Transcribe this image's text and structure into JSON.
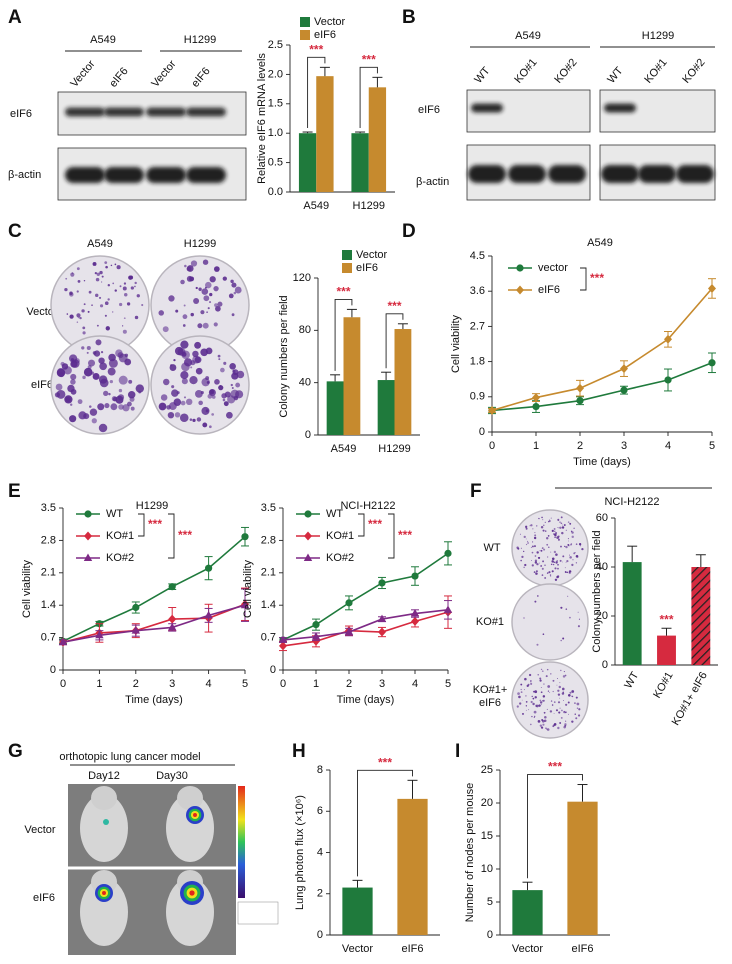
{
  "panel_labels": [
    "A",
    "B",
    "C",
    "D",
    "E",
    "F",
    "G",
    "H",
    "I"
  ],
  "panel_a": {
    "cell_lines": [
      "A549",
      "H1299"
    ],
    "lanes": [
      "Vector",
      "eIF6",
      "Vector",
      "eIF6"
    ],
    "rows": [
      "eIF6",
      "β-actin"
    ]
  },
  "panel_b": {
    "cell_lines": [
      "A549",
      "H1299"
    ],
    "lanes": [
      "WT",
      "KO#1",
      "KO#2",
      "WT",
      "KO#1",
      "KO#2"
    ],
    "rows": [
      "eIF6",
      "β-actin"
    ]
  },
  "panel_c": {
    "cell_lines": [
      "A549",
      "H1299"
    ],
    "rows": [
      "Vector",
      "eIF6"
    ]
  },
  "panel_f": {
    "title": "NCI-H2122",
    "rows": [
      "WT",
      "KO#1",
      "KO#1+ eIF6"
    ]
  },
  "panel_g": {
    "title": "orthotopic lung cancer model",
    "days": [
      "Day12",
      "Day30"
    ],
    "rows": [
      "Vector",
      "eIF6"
    ]
  },
  "chart_data": [
    {
      "type": "bar",
      "ylabel": "Relative eIF6 mRNA levels",
      "categories": [
        "A549",
        "H1299"
      ],
      "series": [
        {
          "name": "Vector",
          "color": "#1f7a3c",
          "values": [
            1.0,
            1.0
          ],
          "errors": [
            0.02,
            0.02
          ]
        },
        {
          "name": "eIF6",
          "color": "#c68a2e",
          "values": [
            1.97,
            1.78
          ],
          "errors": [
            0.15,
            0.17
          ]
        }
      ],
      "ylim": [
        0,
        2.5
      ],
      "yticks": [
        {
          "value": 0,
          "label": "0.0"
        },
        0.5,
        {
          "value": 1,
          "label": "1.0"
        },
        1.5,
        {
          "value": 2,
          "label": "2.0"
        },
        2.5
      ],
      "annotations": [
        "***",
        "***"
      ]
    },
    {
      "type": "bar",
      "ylabel": "Colony numbers per field",
      "categories": [
        "A549",
        "H1299"
      ],
      "series": [
        {
          "name": "Vector",
          "color": "#1f7a3c",
          "values": [
            41,
            42
          ],
          "errors": [
            5,
            6
          ]
        },
        {
          "name": "eIF6",
          "color": "#c68a2e",
          "values": [
            90,
            81
          ],
          "errors": [
            6,
            4
          ]
        }
      ],
      "ylim": [
        0,
        120
      ],
      "yticks": [
        0,
        40,
        80,
        120
      ],
      "annotations": [
        "***",
        "***"
      ]
    },
    {
      "type": "line",
      "title": "A549",
      "xlabel": "Time (days)",
      "ylabel": "Cell viability",
      "x": [
        0,
        1,
        2,
        3,
        4,
        5
      ],
      "series": [
        {
          "name": "vector",
          "color": "#1f7a3c",
          "values": [
            0.55,
            0.65,
            0.8,
            1.07,
            1.33,
            1.77
          ],
          "errors": [
            0.08,
            0.15,
            0.1,
            0.1,
            0.28,
            0.25
          ]
        },
        {
          "name": "eIF6",
          "color": "#c68a2e",
          "values": [
            0.55,
            0.88,
            1.12,
            1.62,
            2.37,
            3.67
          ],
          "errors": [
            0.05,
            0.1,
            0.2,
            0.2,
            0.2,
            0.25
          ]
        }
      ],
      "xlim": [
        0,
        5
      ],
      "xticks": [
        0,
        1,
        2,
        3,
        4,
        5
      ],
      "ylim": [
        0,
        4.5
      ],
      "yticks": [
        0,
        0.9,
        1.8,
        2.7,
        3.6,
        4.5
      ],
      "annotations": [
        "***"
      ]
    },
    {
      "type": "line",
      "title": "H1299",
      "xlabel": "Time (days)",
      "ylabel": "Cell viability",
      "x": [
        0,
        1,
        2,
        3,
        4,
        5
      ],
      "series": [
        {
          "name": "WT",
          "color": "#1f7a3c",
          "values": [
            0.62,
            1.0,
            1.35,
            1.8,
            2.2,
            2.88
          ],
          "errors": [
            0.05,
            0.05,
            0.12,
            0.06,
            0.25,
            0.2
          ]
        },
        {
          "name": "KO#1",
          "color": "#d62a3f",
          "values": [
            0.6,
            0.8,
            0.85,
            1.1,
            1.12,
            1.42
          ],
          "errors": [
            0.05,
            0.2,
            0.15,
            0.25,
            0.3,
            0.35
          ]
        },
        {
          "name": "KO#2",
          "color": "#7e2a86",
          "values": [
            0.6,
            0.75,
            0.85,
            0.92,
            1.18,
            1.4
          ],
          "errors": [
            0.05,
            0.1,
            0.12,
            0.08,
            0.15,
            0.35
          ]
        }
      ],
      "xlim": [
        0,
        5
      ],
      "xticks": [
        0,
        1,
        2,
        3,
        4,
        5
      ],
      "ylim": [
        0,
        3.5
      ],
      "yticks": [
        0,
        0.7,
        1.4,
        2.1,
        2.8,
        3.5
      ],
      "annotations": [
        "***",
        "***"
      ]
    },
    {
      "type": "line",
      "title": "NCI-H2122",
      "xlabel": "Time (days)",
      "ylabel": "Cell viability",
      "x": [
        0,
        1,
        2,
        3,
        4,
        5
      ],
      "series": [
        {
          "name": "WT",
          "color": "#1f7a3c",
          "values": [
            0.65,
            0.98,
            1.45,
            1.88,
            2.03,
            2.52
          ],
          "errors": [
            0.05,
            0.12,
            0.15,
            0.12,
            0.2,
            0.25
          ]
        },
        {
          "name": "KO#1",
          "color": "#d62a3f",
          "values": [
            0.52,
            0.62,
            0.85,
            0.82,
            1.05,
            1.25
          ],
          "errors": [
            0.1,
            0.12,
            0.1,
            0.1,
            0.12,
            0.35
          ]
        },
        {
          "name": "KO#2",
          "color": "#7e2a86",
          "values": [
            0.65,
            0.72,
            0.82,
            1.1,
            1.22,
            1.3
          ],
          "errors": [
            0.05,
            0.08,
            0.08,
            0.05,
            0.08,
            0.2
          ]
        }
      ],
      "xlim": [
        0,
        5
      ],
      "xticks": [
        0,
        1,
        2,
        3,
        4,
        5
      ],
      "ylim": [
        0,
        3.5
      ],
      "yticks": [
        0,
        0.7,
        1.4,
        2.1,
        2.8,
        3.5
      ],
      "annotations": [
        "***",
        "***"
      ]
    },
    {
      "type": "bar",
      "ylabel": "Colony numbers per field",
      "categories": [
        "WT",
        "KO#1",
        "KO#1+ eIF6"
      ],
      "values": [
        42,
        12,
        40
      ],
      "errors": [
        6.5,
        3,
        5
      ],
      "colors": [
        "#1f7a3c",
        "#d62a3f",
        "#d62a3f"
      ],
      "hatch": [
        false,
        false,
        true
      ],
      "ylim": [
        0,
        60
      ],
      "yticks": [
        0,
        20,
        40,
        60
      ],
      "annotations": [
        "***"
      ]
    },
    {
      "type": "bar",
      "ylabel": "Lung photon flux (×10⁶)",
      "categories": [
        "Vector",
        "eIF6"
      ],
      "values": [
        2.3,
        6.6
      ],
      "errors": [
        0.35,
        0.9
      ],
      "colors": [
        "#1f7a3c",
        "#c68a2e"
      ],
      "ylim": [
        0,
        8
      ],
      "yticks": [
        0,
        2,
        4,
        6,
        8
      ],
      "annotations": [
        "***"
      ]
    },
    {
      "type": "bar",
      "ylabel": "Number of nodes per mouse",
      "categories": [
        "Vector",
        "eIF6"
      ],
      "values": [
        6.8,
        20.2
      ],
      "errors": [
        1.2,
        2.6
      ],
      "colors": [
        "#1f7a3c",
        "#c68a2e"
      ],
      "ylim": [
        0,
        25
      ],
      "yticks": [
        0,
        5,
        10,
        15,
        20,
        25
      ],
      "annotations": [
        "***"
      ]
    }
  ]
}
